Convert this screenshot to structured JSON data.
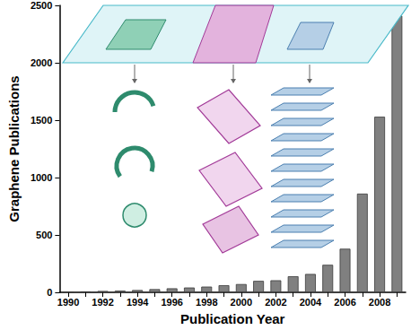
{
  "chart_data": {
    "type": "bar",
    "x_label": "Publication Year",
    "y_label": "Graphene Publications",
    "categories": [
      "1990",
      null,
      "1992",
      null,
      "1994",
      null,
      "1996",
      null,
      "1998",
      null,
      "2000",
      null,
      "2002",
      null,
      "2004",
      null,
      "2006",
      null,
      "2008",
      null
    ],
    "values": [
      5,
      8,
      12,
      15,
      20,
      28,
      35,
      42,
      50,
      62,
      72,
      100,
      105,
      140,
      160,
      240,
      380,
      860,
      1530,
      2410
    ],
    "color": "#808080",
    "ylim": [
      0,
      2500
    ],
    "yticks": [
      0,
      500,
      1000,
      1500,
      2000,
      2500
    ],
    "grid": false
  }
}
